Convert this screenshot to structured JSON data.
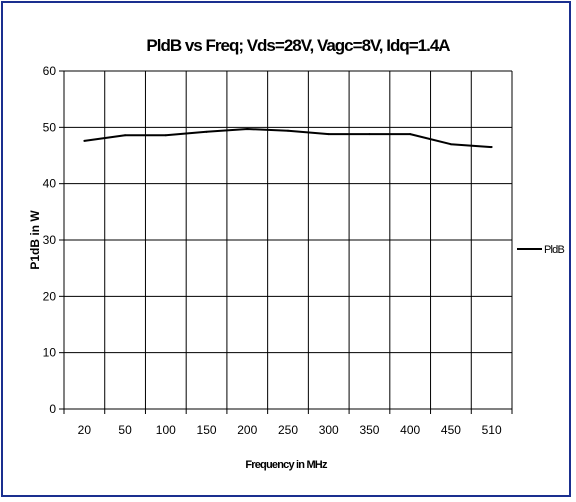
{
  "chart_data": {
    "type": "line",
    "title": "PldB vs Freq; Vds=28V, Vagc=8V, Idq=1.4A",
    "xlabel": "Frequency in MHz",
    "ylabel": "P1dB in W",
    "categories": [
      "20",
      "50",
      "100",
      "150",
      "200",
      "250",
      "300",
      "350",
      "400",
      "450",
      "510"
    ],
    "ylim": [
      0,
      60
    ],
    "yticks": [
      0,
      10,
      20,
      30,
      40,
      50,
      60
    ],
    "grid": true,
    "legend_position": "right",
    "series": [
      {
        "name": "PldB",
        "values": [
          47.6,
          48.6,
          48.6,
          49.2,
          49.7,
          49.4,
          48.8,
          48.8,
          48.8,
          47.0,
          46.5
        ],
        "color": "#000000"
      }
    ]
  }
}
